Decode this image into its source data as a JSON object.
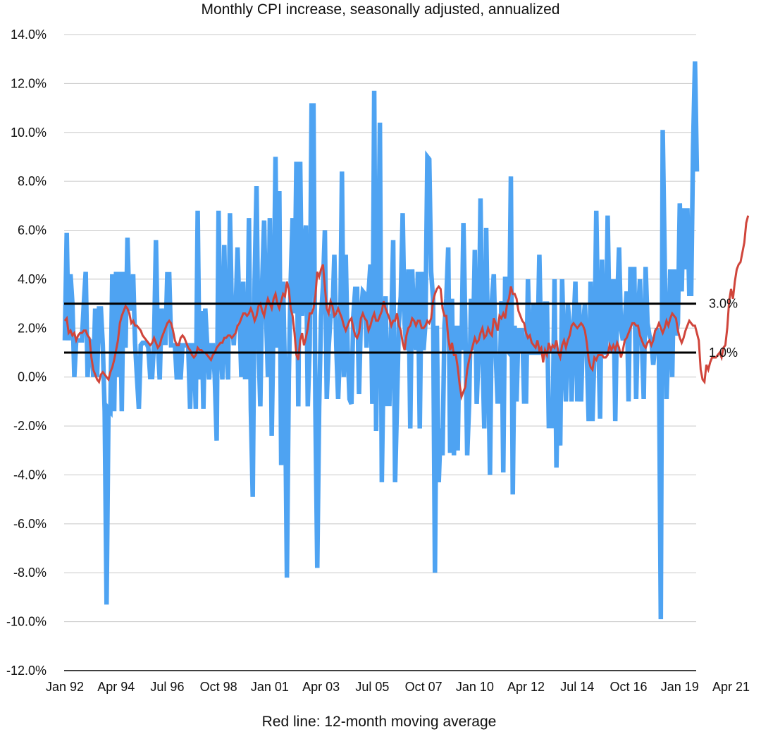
{
  "chart_data": {
    "type": "line",
    "title": "Monthly CPI increase, seasonally adjusted, annualized",
    "caption": "Red line: 12-month moving average",
    "xlabel": "",
    "ylabel": "",
    "ylim": [
      -12,
      14
    ],
    "y_ticks": [
      14,
      12,
      10,
      8,
      6,
      4,
      2,
      0,
      -2,
      -4,
      -6,
      -8,
      -10,
      -12
    ],
    "y_tick_labels": [
      "14.0%",
      "12.0%",
      "10.0%",
      "8.0%",
      "6.0%",
      "4.0%",
      "2.0%",
      "0.0%",
      "-2.0%",
      "-4.0%",
      "-6.0%",
      "-8.0%",
      "-10.0%",
      "-12.0%"
    ],
    "x_tick_labels": [
      "Jan 92",
      "Apr 94",
      "Jul 96",
      "Oct 98",
      "Jan 01",
      "Apr 03",
      "Jul 05",
      "Oct 07",
      "Jan 10",
      "Apr 12",
      "Jul 14",
      "Oct 16",
      "Jan 19",
      "Apr 21"
    ],
    "x_tick_month_index": [
      0,
      27,
      54,
      81,
      108,
      135,
      162,
      189,
      216,
      243,
      270,
      297,
      324,
      351
    ],
    "grid": true,
    "reference_lines": [
      {
        "value": 3.0,
        "label": "3.0%"
      },
      {
        "value": 1.0,
        "label": "1.0%"
      }
    ],
    "colors": {
      "monthly": "#4ea3f2",
      "moving_average": "#d0453b",
      "reference": "#000000",
      "grid": "#c8c8c8"
    },
    "series": [
      {
        "name": "Monthly CPI increase (annualized)",
        "values": [
          1.5,
          5.9,
          1.5,
          4.2,
          3.0,
          0.0,
          1.5,
          1.5,
          1.5,
          1.5,
          3.0,
          4.3,
          0.0,
          1.5,
          1.4,
          0.0,
          2.8,
          0.0,
          2.8,
          2.8,
          1.3,
          -1.4,
          -9.3,
          -1.3,
          -1.4,
          4.2,
          -1.4,
          4.3,
          0.0,
          4.3,
          -1.4,
          4.3,
          1.2,
          5.7,
          2.8,
          2.8,
          4.2,
          1.4,
          0.0,
          -1.3,
          1.3,
          1.4,
          1.4,
          1.4,
          1.2,
          0.0,
          0.0,
          1.4,
          5.6,
          1.4,
          -0.1,
          2.8,
          1.4,
          1.4,
          4.2,
          4.2,
          1.3,
          1.3,
          1.3,
          -0.1,
          1.4,
          -0.1,
          1.3,
          1.3,
          1.3,
          1.3,
          -1.3,
          1.3,
          1.3,
          -1.3,
          6.8,
          -0.1,
          2.7,
          -1.3,
          2.8,
          1.3,
          -0.1,
          1.3,
          1.3,
          0.0,
          -2.6,
          6.8,
          1.4,
          -0.1,
          5.4,
          1.3,
          -0.1,
          6.7,
          2.6,
          1.3,
          2.7,
          5.3,
          2.6,
          0.0,
          3.9,
          0.0,
          0.0,
          6.5,
          -1.3,
          -4.9,
          3.9,
          7.8,
          1.4,
          -1.2,
          3.9,
          6.4,
          2.6,
          0.0,
          6.5,
          -2.4,
          2.6,
          9.0,
          1.2,
          7.6,
          -3.6,
          3.9,
          -0.1,
          -8.2,
          0.0,
          3.9,
          6.5,
          2.6,
          8.8,
          -1.2,
          8.8,
          2.5,
          5.0,
          6.2,
          -1.2,
          1.3,
          11.1,
          11.1,
          -1.2,
          -7.8,
          -1.2,
          2.5,
          3.7,
          6.0,
          -0.9,
          1.2,
          2.5,
          2.5,
          5.0,
          1.3,
          -0.9,
          1.3,
          8.4,
          0.0,
          5.0,
          1.2,
          -0.9,
          -1.1,
          2.5,
          3.6,
          3.6,
          -0.7,
          2.5,
          3.5,
          3.4,
          1.2,
          3.4,
          4.6,
          -1.1,
          11.7,
          -2.2,
          3.4,
          10.4,
          -4.3,
          1.1,
          3.3,
          -1.1,
          -1.1,
          2.2,
          5.6,
          -4.3,
          -1.1,
          2.2,
          3.3,
          6.7,
          2.2,
          1.1,
          4.4,
          -2.1,
          4.4,
          2.2,
          1.1,
          4.3,
          -2.1,
          4.3,
          1.1,
          2.2,
          9.0,
          8.9,
          4.3,
          3.2,
          -8.0,
          2.1,
          -4.3,
          -2.1,
          -3.2,
          2.1,
          3.2,
          5.3,
          -3.1,
          3.2,
          -3.2,
          2.1,
          -3.0,
          2.1,
          1.1,
          6.3,
          2.1,
          -3.2,
          -1.1,
          3.2,
          1.1,
          5.2,
          -1.1,
          1.1,
          7.3,
          1.1,
          -2.1,
          6.1,
          1.0,
          -4.0,
          3.1,
          4.2,
          1.0,
          -1.0,
          -1.0,
          3.1,
          -3.9,
          4.1,
          1.1,
          1.0,
          8.2,
          -4.8,
          2.1,
          -1.0,
          2.0,
          1.0,
          2.0,
          -1.0,
          -1.0,
          4.0,
          1.0,
          1.0,
          3.0,
          1.0,
          1.0,
          5.0,
          1.0,
          1.0,
          3.0,
          3.0,
          -2.0,
          -2.0,
          -2.0,
          4.0,
          -3.7,
          1.0,
          -2.8,
          4.0,
          1.0,
          -1.0,
          3.0,
          2.0,
          -1.0,
          2.0,
          3.9,
          -1.0,
          3.0,
          -1.0,
          2.0,
          3.0,
          1.0,
          -1.8,
          3.9,
          -1.8,
          1.0,
          6.8,
          2.0,
          -1.7,
          4.8,
          1.0,
          1.0,
          6.6,
          2.0,
          1.0,
          4.0,
          -1.8,
          3.0,
          5.3,
          2.0,
          1.5,
          2.2,
          3.5,
          -1.0,
          4.5,
          2.2,
          4.5,
          -0.9,
          2.5,
          4.0,
          1.5,
          -0.9,
          4.5,
          2.2,
          1.7,
          1.5,
          0.5,
          1.2,
          2.0,
          1.0,
          -9.9,
          10.1,
          5.0,
          -0.9,
          1.5,
          4.4,
          0.0,
          4.4,
          1.7,
          2.2,
          7.1,
          3.5,
          6.9,
          4.4,
          6.9,
          3.4,
          3.4,
          9.4,
          12.9,
          8.4
        ]
      },
      {
        "name": "12-month moving average",
        "values": [
          2.3,
          2.4,
          1.8,
          1.9,
          1.7,
          1.8,
          1.5,
          1.7,
          1.8,
          1.8,
          1.9,
          1.9,
          1.7,
          1.6,
          0.8,
          0.3,
          0.1,
          -0.1,
          -0.2,
          0.1,
          0.2,
          0.1,
          0.0,
          -0.1,
          0.2,
          0.4,
          0.7,
          1.1,
          1.5,
          2.2,
          2.5,
          2.7,
          2.9,
          2.8,
          2.6,
          2.2,
          2.3,
          2.1,
          2.1,
          2.0,
          1.9,
          1.7,
          1.6,
          1.5,
          1.4,
          1.3,
          1.4,
          1.6,
          1.4,
          1.2,
          1.3,
          1.6,
          1.8,
          2.0,
          2.2,
          2.3,
          2.2,
          1.9,
          1.5,
          1.3,
          1.3,
          1.6,
          1.7,
          1.6,
          1.4,
          1.2,
          1.1,
          0.9,
          0.8,
          0.9,
          1.2,
          1.1,
          1.1,
          1.0,
          1.0,
          0.9,
          0.8,
          0.7,
          0.9,
          1.0,
          1.2,
          1.3,
          1.4,
          1.4,
          1.6,
          1.6,
          1.7,
          1.7,
          1.6,
          1.7,
          1.8,
          2.1,
          2.2,
          2.4,
          2.6,
          2.6,
          2.5,
          2.6,
          2.8,
          2.6,
          2.3,
          2.5,
          2.9,
          3.0,
          2.7,
          2.5,
          2.9,
          3.2,
          3.0,
          2.8,
          3.2,
          3.4,
          3.0,
          2.8,
          3.1,
          3.4,
          3.3,
          3.9,
          3.6,
          2.8,
          2.5,
          1.8,
          0.9,
          0.7,
          1.5,
          1.8,
          1.3,
          1.6,
          2.0,
          2.6,
          2.6,
          2.8,
          3.3,
          4.3,
          4.1,
          4.4,
          4.6,
          3.7,
          2.8,
          2.6,
          3.1,
          2.9,
          2.5,
          2.6,
          2.8,
          2.6,
          2.4,
          2.1,
          1.9,
          2.1,
          2.3,
          2.4,
          2.0,
          1.7,
          1.6,
          1.8,
          2.4,
          2.6,
          2.4,
          2.3,
          1.9,
          2.1,
          2.4,
          2.6,
          2.3,
          2.3,
          2.5,
          2.7,
          3.1,
          2.8,
          2.6,
          2.4,
          2.1,
          2.3,
          2.3,
          2.6,
          2.1,
          1.9,
          1.4,
          1.1,
          1.7,
          2.0,
          2.1,
          2.4,
          2.3,
          2.1,
          2.3,
          2.3,
          2.0,
          2.0,
          2.1,
          2.3,
          2.2,
          2.4,
          3.1,
          3.4,
          3.6,
          3.7,
          3.6,
          2.8,
          2.5,
          2.5,
          1.6,
          1.1,
          1.4,
          0.9,
          0.9,
          0.4,
          -0.3,
          -0.8,
          -0.6,
          -0.4,
          0.3,
          0.7,
          1.0,
          1.3,
          1.6,
          1.4,
          1.5,
          1.8,
          2.0,
          1.6,
          1.7,
          2.0,
          1.8,
          1.7,
          2.4,
          2.2,
          1.9,
          2.5,
          2.4,
          2.6,
          2.4,
          3.0,
          3.2,
          3.7,
          3.4,
          3.4,
          3.2,
          2.7,
          2.5,
          2.3,
          2.2,
          1.8,
          1.6,
          1.7,
          1.4,
          1.3,
          1.2,
          1.5,
          1.1,
          1.2,
          0.6,
          1.1,
          0.9,
          1.4,
          1.1,
          1.3,
          1.2,
          1.5,
          1.0,
          0.8,
          1.3,
          1.5,
          1.2,
          1.5,
          1.7,
          2.1,
          2.2,
          2.1,
          2.0,
          2.1,
          2.2,
          2.1,
          1.9,
          1.4,
          0.7,
          0.4,
          0.3,
          0.8,
          0.7,
          0.9,
          0.9,
          0.9,
          0.8,
          0.8,
          0.9,
          1.3,
          1.1,
          1.3,
          1.1,
          1.4,
          1.2,
          0.8,
          1.1,
          1.5,
          1.6,
          1.8,
          2.0,
          2.2,
          2.2,
          2.1,
          2.1,
          1.7,
          1.5,
          1.3,
          1.2,
          1.4,
          1.5,
          1.3,
          1.5,
          1.9,
          2.0,
          2.2,
          2.0,
          1.8,
          2.0,
          2.3,
          2.1,
          2.4,
          2.6,
          2.5,
          2.4,
          1.9,
          1.6,
          1.4,
          1.6,
          1.9,
          2.1,
          2.3,
          2.2,
          2.1,
          2.1,
          1.8,
          1.5,
          0.3,
          -0.1,
          -0.2,
          0.5,
          0.3,
          0.6,
          0.8,
          0.8,
          0.8,
          0.9,
          1.0,
          0.8,
          1.2,
          1.3,
          2.0,
          3.1,
          3.6,
          3.2,
          3.9,
          4.4,
          4.6,
          4.7,
          5.1,
          5.5,
          6.3,
          6.6
        ]
      }
    ]
  }
}
